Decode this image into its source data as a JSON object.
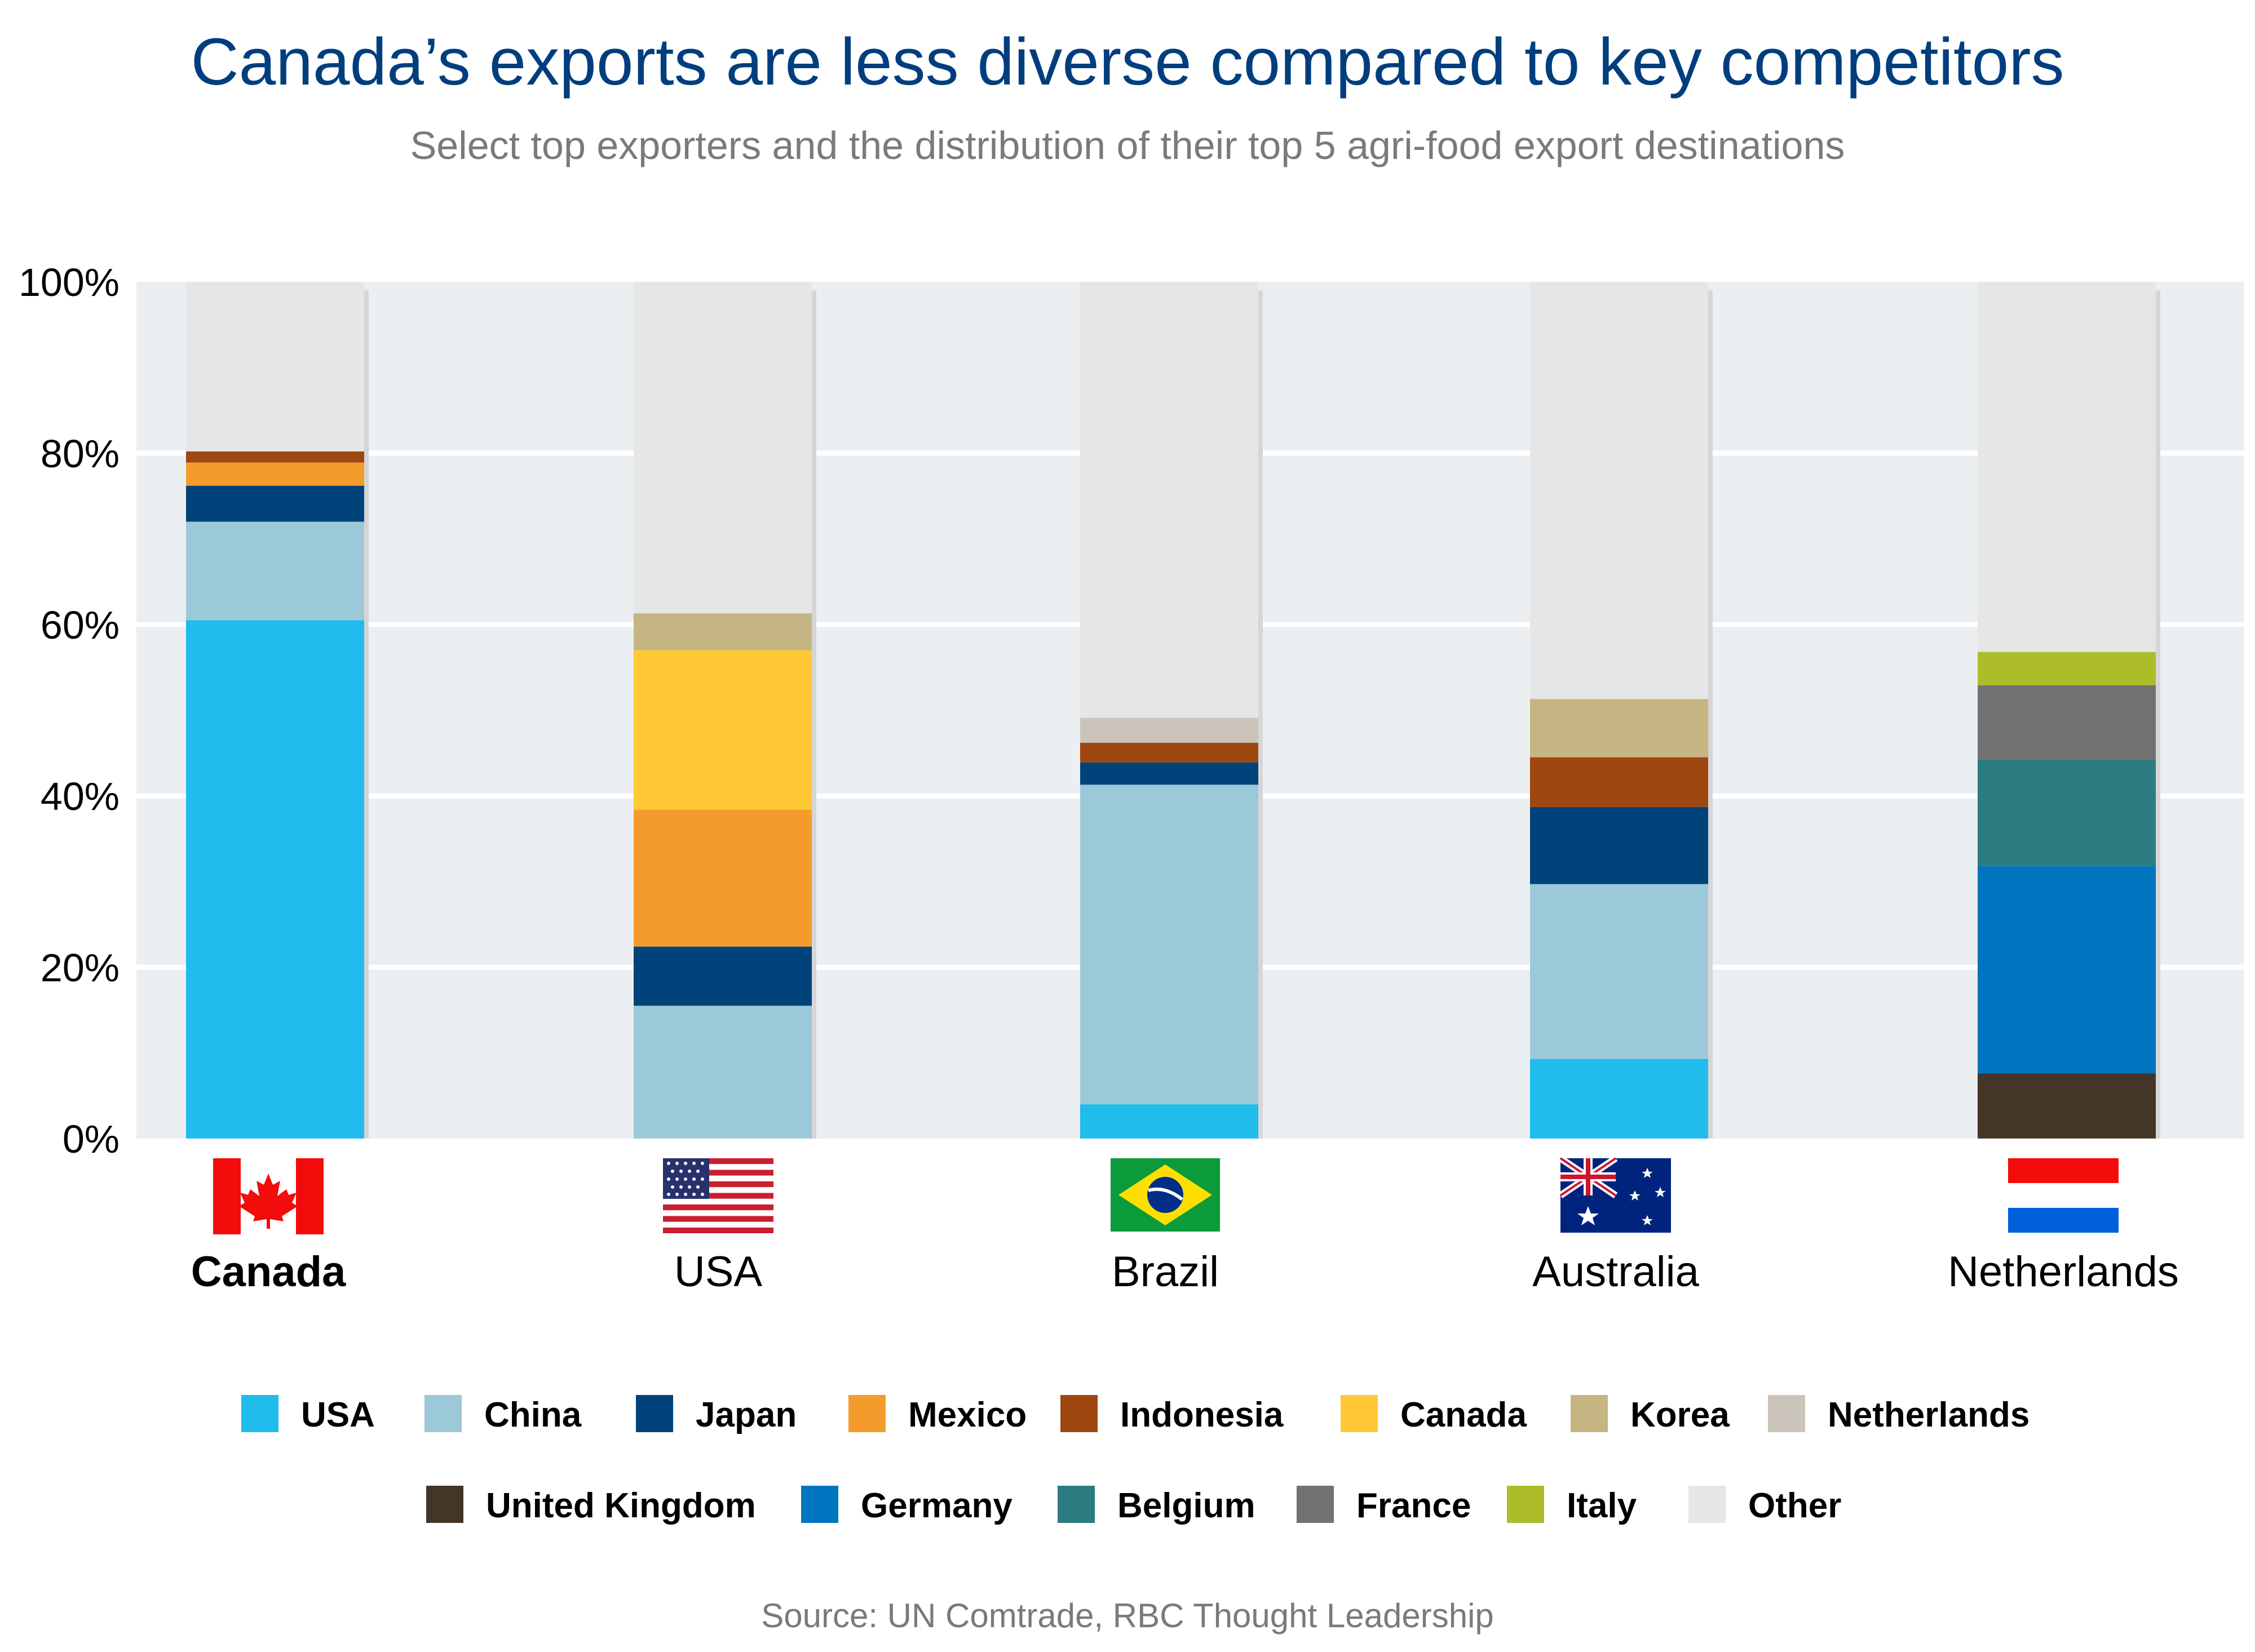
{
  "chart_data": {
    "type": "bar",
    "stacked": true,
    "title": "Canada’s exports are less diverse compared to key competitors",
    "subtitle": "Select top exporters and the distribution of their top 5 agri-food export destinations",
    "source": "Source: UN Comtrade, RBC Thought Leadership",
    "categories": [
      "Canada",
      "USA",
      "Brazil",
      "Australia",
      "Netherlands"
    ],
    "highlight_category": "Canada",
    "ylim": [
      0,
      100
    ],
    "yticks": [
      "0%",
      "20%",
      "40%",
      "60%",
      "80%",
      "100%"
    ],
    "grid": true,
    "legend_position": "bottom",
    "series": [
      {
        "name": "USA",
        "color": "#1fbcec",
        "values": [
          60.5,
          0,
          4,
          9.3,
          0
        ]
      },
      {
        "name": "China",
        "color": "#9bc9d8",
        "values": [
          11.5,
          15.5,
          37.3,
          20.4,
          0
        ]
      },
      {
        "name": "Japan",
        "color": "#00427a",
        "values": [
          4.2,
          6.9,
          2.6,
          9.0,
          0
        ]
      },
      {
        "name": "Mexico",
        "color": "#f49c2b",
        "values": [
          2.7,
          16.0,
          0,
          0,
          0
        ]
      },
      {
        "name": "Indonesia",
        "color": "#9e4711",
        "values": [
          1.3,
          0,
          2.3,
          5.8,
          0
        ]
      },
      {
        "name": "Canada",
        "color": "#fec934",
        "values": [
          0,
          18.6,
          0,
          0,
          0
        ]
      },
      {
        "name": "Korea",
        "color": "#c5b582",
        "values": [
          0,
          4.3,
          0,
          6.8,
          0
        ]
      },
      {
        "name": "Netherlands",
        "color": "#cac4bb",
        "values": [
          0,
          0,
          2.9,
          0,
          0
        ]
      },
      {
        "name": "United Kingdom",
        "color": "#443529",
        "values": [
          0,
          0,
          0,
          0,
          7.6
        ]
      },
      {
        "name": "Germany",
        "color": "#0075bf",
        "values": [
          0,
          0,
          0,
          0,
          24.2
        ]
      },
      {
        "name": "Belgium",
        "color": "#2a7c80",
        "values": [
          0,
          0,
          0,
          0,
          12.4
        ]
      },
      {
        "name": "France",
        "color": "#727272",
        "values": [
          0,
          0,
          0,
          0,
          8.7
        ]
      },
      {
        "name": "Italy",
        "color": "#acbd29",
        "values": [
          0,
          0,
          0,
          0,
          3.9
        ]
      },
      {
        "name": "Other",
        "color": "#e6e6e6",
        "values": [
          19.8,
          38.7,
          50.9,
          48.7,
          43.2
        ]
      }
    ],
    "flags": [
      "canada-flag-icon",
      "usa-flag-icon",
      "brazil-flag-icon",
      "australia-flag-icon",
      "netherlands-flag-icon"
    ],
    "colors": {
      "title": "#003e7e",
      "plot_background": "#ebeff2",
      "muted_text": "#7a7a7a"
    }
  }
}
